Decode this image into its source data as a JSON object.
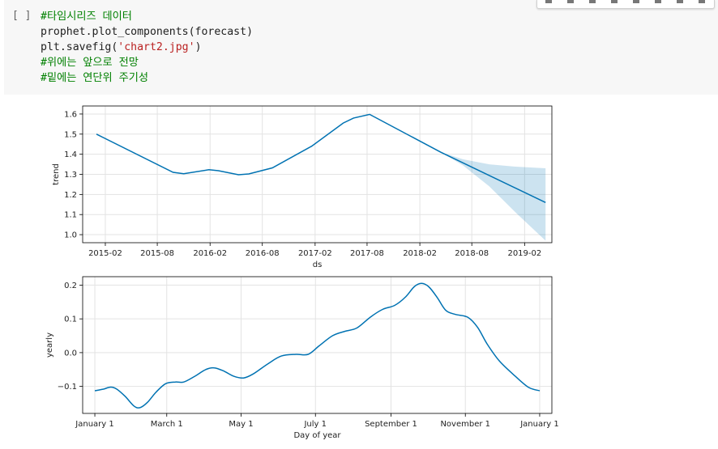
{
  "cell": {
    "prompt": "[ ]",
    "code_lines": [
      {
        "type": "comment",
        "text": "#타임시리즈 데이터"
      },
      {
        "type": "code",
        "text": "prophet.plot_components(forecast)"
      },
      {
        "type": "code_string",
        "before": "plt.savefig(",
        "string": "'chart2.jpg'",
        "after": ")"
      },
      {
        "type": "comment",
        "text": "#위에는 앞으로 전망"
      },
      {
        "type": "comment",
        "text": "#밑에는 연단위 주기성"
      }
    ]
  },
  "toolbar": {
    "icons": [
      "move-up-icon",
      "move-down-icon",
      "link-icon",
      "comment-icon",
      "settings-icon",
      "mirror-icon",
      "delete-icon",
      "more-icon"
    ]
  },
  "chart_data": [
    {
      "type": "line",
      "xlabel": "ds",
      "ylabel": "trend",
      "ylim": [
        0.96,
        1.64
      ],
      "xlim": [
        "2014-11-14",
        "2019-05-07"
      ],
      "x_ticks": [
        "2015-02",
        "2015-08",
        "2016-02",
        "2016-08",
        "2017-02",
        "2017-08",
        "2018-02",
        "2018-08",
        "2019-02"
      ],
      "y_ticks": [
        "1.0",
        "1.1",
        "1.2",
        "1.3",
        "1.4",
        "1.5",
        "1.6"
      ],
      "grid": true,
      "color": "#0072b2",
      "band_color": "#0072b2",
      "series": [
        {
          "values": [
            {
              "x": "2015-01-01",
              "y": 1.5
            },
            {
              "x": "2015-09-25",
              "y": 1.31
            },
            {
              "x": "2015-11-01",
              "y": 1.303
            },
            {
              "x": "2016-01-28",
              "y": 1.323
            },
            {
              "x": "2016-03-01",
              "y": 1.318
            },
            {
              "x": "2016-05-10",
              "y": 1.298
            },
            {
              "x": "2016-06-15",
              "y": 1.302
            },
            {
              "x": "2016-09-05",
              "y": 1.332
            },
            {
              "x": "2017-01-20",
              "y": 1.44
            },
            {
              "x": "2017-05-10",
              "y": 1.555
            },
            {
              "x": "2017-06-15",
              "y": 1.58
            },
            {
              "x": "2017-08-10",
              "y": 1.598
            },
            {
              "x": "2018-04-15",
              "y": 1.41
            },
            {
              "x": "2019-04-15",
              "y": 1.16
            }
          ]
        }
      ],
      "uncertainty": {
        "upper": [
          {
            "x": "2018-04-15",
            "y": 1.41
          },
          {
            "x": "2018-07-01",
            "y": 1.375
          },
          {
            "x": "2018-10-01",
            "y": 1.35
          },
          {
            "x": "2019-01-01",
            "y": 1.338
          },
          {
            "x": "2019-04-15",
            "y": 1.33
          }
        ],
        "lower": [
          {
            "x": "2018-04-15",
            "y": 1.41
          },
          {
            "x": "2018-07-01",
            "y": 1.345
          },
          {
            "x": "2018-10-01",
            "y": 1.24
          },
          {
            "x": "2019-01-01",
            "y": 1.11
          },
          {
            "x": "2019-04-15",
            "y": 0.97
          }
        ]
      }
    },
    {
      "type": "line",
      "xlabel": "Day of year",
      "ylabel": "yearly",
      "ylim": [
        -0.18,
        0.225
      ],
      "xlim": [
        -10,
        375
      ],
      "x_tick_values": [
        0,
        59,
        120,
        181,
        243,
        304,
        365
      ],
      "x_ticks": [
        "January 1",
        "March 1",
        "May 1",
        "July 1",
        "September 1",
        "November 1",
        "January 1"
      ],
      "y_tick_values": [
        -0.1,
        0.0,
        0.1,
        0.2
      ],
      "y_ticks": [
        "−0.1",
        "0.0",
        "0.1",
        "0.2"
      ],
      "grid": true,
      "color": "#0072b2",
      "series": [
        {
          "values": [
            {
              "x": 0,
              "y": -0.113
            },
            {
              "x": 7,
              "y": -0.108
            },
            {
              "x": 13,
              "y": -0.102
            },
            {
              "x": 18,
              "y": -0.108
            },
            {
              "x": 25,
              "y": -0.13
            },
            {
              "x": 32,
              "y": -0.158
            },
            {
              "x": 37,
              "y": -0.163
            },
            {
              "x": 43,
              "y": -0.148
            },
            {
              "x": 50,
              "y": -0.118
            },
            {
              "x": 58,
              "y": -0.092
            },
            {
              "x": 66,
              "y": -0.087
            },
            {
              "x": 73,
              "y": -0.087
            },
            {
              "x": 82,
              "y": -0.07
            },
            {
              "x": 91,
              "y": -0.05
            },
            {
              "x": 98,
              "y": -0.045
            },
            {
              "x": 106,
              "y": -0.055
            },
            {
              "x": 114,
              "y": -0.07
            },
            {
              "x": 122,
              "y": -0.075
            },
            {
              "x": 130,
              "y": -0.063
            },
            {
              "x": 142,
              "y": -0.033
            },
            {
              "x": 153,
              "y": -0.01
            },
            {
              "x": 165,
              "y": -0.005
            },
            {
              "x": 175,
              "y": -0.005
            },
            {
              "x": 184,
              "y": 0.02
            },
            {
              "x": 195,
              "y": 0.05
            },
            {
              "x": 205,
              "y": 0.063
            },
            {
              "x": 215,
              "y": 0.073
            },
            {
              "x": 226,
              "y": 0.105
            },
            {
              "x": 236,
              "y": 0.128
            },
            {
              "x": 246,
              "y": 0.14
            },
            {
              "x": 255,
              "y": 0.165
            },
            {
              "x": 262,
              "y": 0.195
            },
            {
              "x": 268,
              "y": 0.205
            },
            {
              "x": 274,
              "y": 0.195
            },
            {
              "x": 281,
              "y": 0.163
            },
            {
              "x": 288,
              "y": 0.125
            },
            {
              "x": 296,
              "y": 0.113
            },
            {
              "x": 306,
              "y": 0.105
            },
            {
              "x": 314,
              "y": 0.075
            },
            {
              "x": 322,
              "y": 0.025
            },
            {
              "x": 332,
              "y": -0.025
            },
            {
              "x": 345,
              "y": -0.07
            },
            {
              "x": 356,
              "y": -0.103
            },
            {
              "x": 365,
              "y": -0.113
            }
          ]
        }
      ]
    }
  ]
}
